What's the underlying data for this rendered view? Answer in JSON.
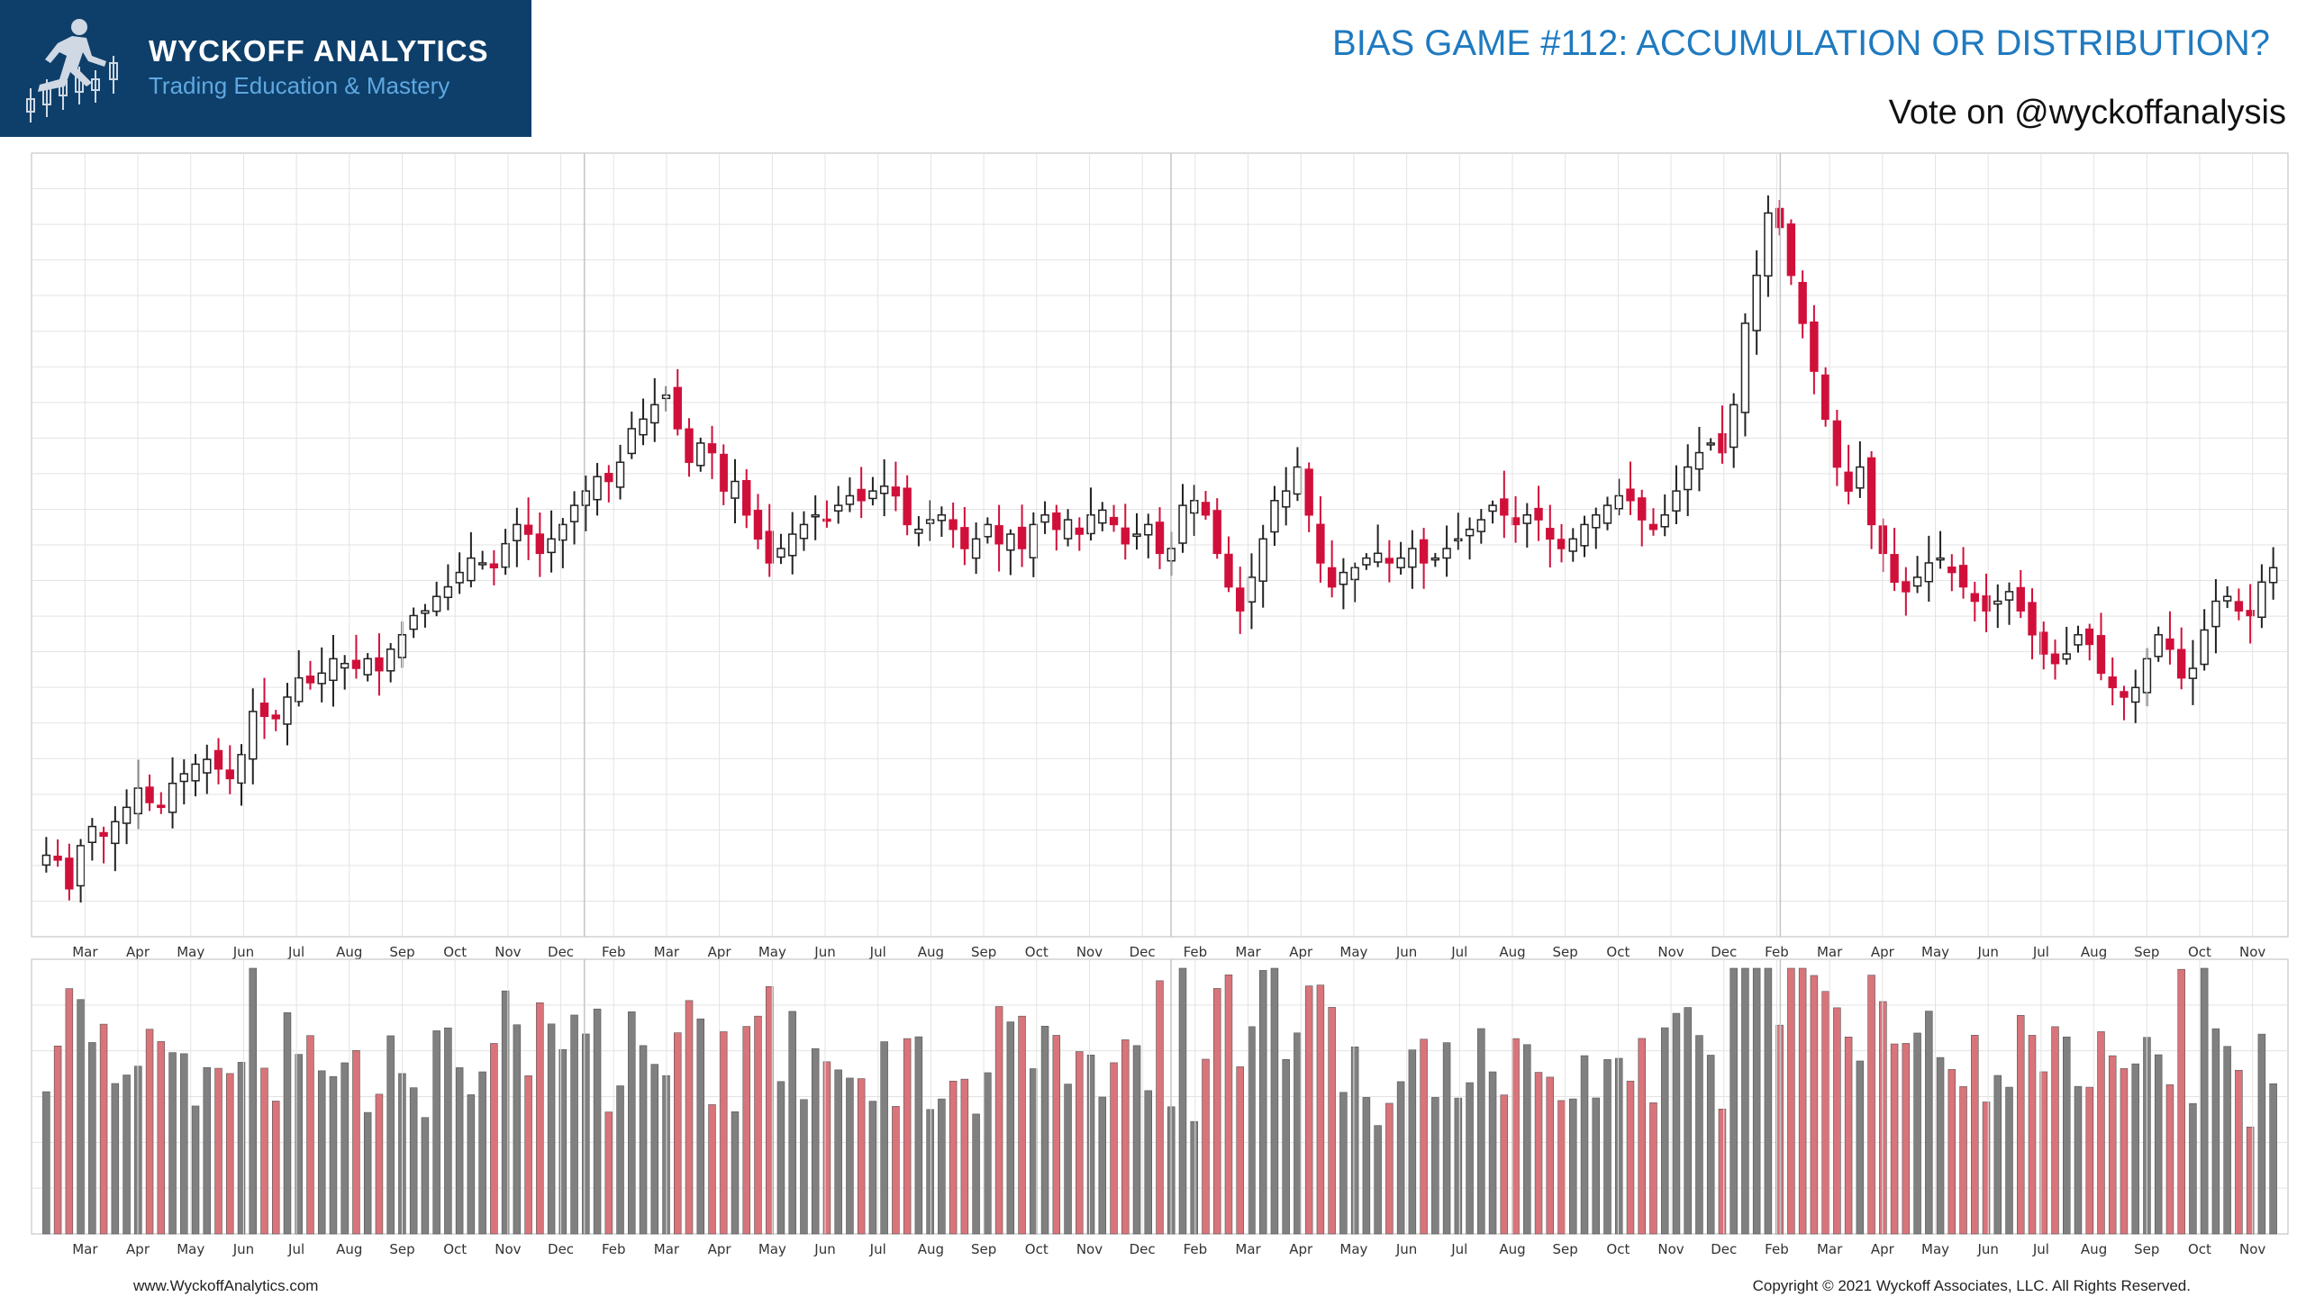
{
  "brand": {
    "name": "WYCKOFF ANALYTICS",
    "tagline": "Trading Education & Mastery"
  },
  "header": {
    "title": "BIAS GAME #112: ACCUMULATION OR DISTRIBUTION?",
    "subtitle": "Vote on @wyckoffanalysis"
  },
  "footer": {
    "website": "www.WyckoffAnalytics.com",
    "copyright": "Copyright © 2021 Wyckoff Associates, LLC. All Rights Reserved."
  },
  "colors": {
    "brand_bg": "#0e3f6b",
    "title_blue": "#1f7ac0",
    "up_candle": "#ffffff",
    "down_candle": "#d0103a",
    "up_volume": "#808080",
    "down_volume": "#d9747a",
    "grid": "#e3e3e3"
  },
  "chart_data": {
    "type": "candlestick",
    "price_scale_note": "",
    "months": [
      "Mar",
      "Apr",
      "May",
      "Jun",
      "Jul",
      "Aug",
      "Sep",
      "Oct",
      "Nov",
      "Dec",
      "Feb",
      "Mar",
      "Apr",
      "May",
      "Jun",
      "Jul",
      "Aug",
      "Sep",
      "Oct",
      "Nov",
      "Dec",
      "Feb",
      "Mar",
      "Apr",
      "May",
      "Jun",
      "Jul",
      "Aug",
      "Sep",
      "Oct",
      "Nov",
      "Dec",
      "Feb",
      "Mar",
      "Apr",
      "May",
      "Jun",
      "Jul",
      "Aug",
      "Sep",
      "Oct",
      "Nov"
    ],
    "close": [
      58,
      56,
      44,
      62,
      70,
      66,
      72,
      78,
      86,
      80,
      78,
      88,
      92,
      96,
      98,
      94,
      90,
      100,
      118,
      116,
      115,
      124,
      132,
      130,
      134,
      140,
      138,
      136,
      140,
      135,
      144,
      150,
      158,
      160,
      166,
      170,
      176,
      182,
      180,
      178,
      188,
      196,
      192,
      184,
      190,
      196,
      204,
      210,
      216,
      214,
      222,
      236,
      240,
      246,
      250,
      236,
      222,
      230,
      226,
      210,
      214,
      200,
      190,
      180,
      186,
      192,
      196,
      200,
      198,
      204,
      208,
      206,
      210,
      212,
      208,
      196,
      194,
      198,
      200,
      194,
      186,
      190,
      196,
      188,
      192,
      186,
      196,
      200,
      194,
      198,
      192,
      200,
      202,
      196,
      188,
      192,
      196,
      184,
      186,
      204,
      206,
      200,
      184,
      170,
      160,
      174,
      190,
      206,
      210,
      220,
      200,
      180,
      170,
      176,
      178,
      182,
      184,
      180,
      182,
      186,
      180,
      182,
      186,
      190,
      194,
      198,
      204,
      200,
      196,
      200,
      198,
      190,
      186,
      190,
      196,
      200,
      204,
      208,
      206,
      198,
      194,
      200,
      210,
      220,
      226,
      230,
      226,
      246,
      280,
      300,
      326,
      320,
      300,
      280,
      260,
      240,
      220,
      210,
      220,
      196,
      184,
      172,
      168,
      174,
      180,
      182,
      176,
      170,
      164,
      160,
      164,
      168,
      160,
      150,
      142,
      138,
      142,
      150,
      146,
      134,
      128,
      124,
      128,
      140,
      150,
      144,
      132,
      136,
      152,
      164,
      166,
      160,
      158,
      172,
      178
    ]
  }
}
